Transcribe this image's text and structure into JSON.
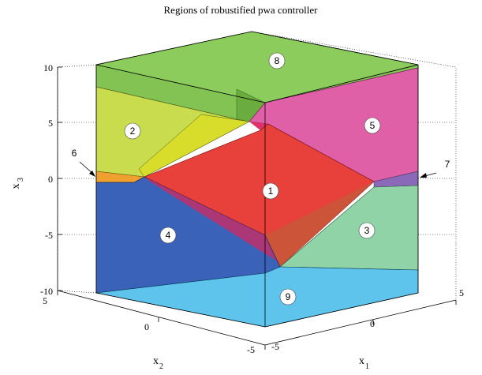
{
  "chart_data": {
    "type": "3d-polyhedral-partition",
    "title": "Regions of robustified pwa controller",
    "axes": {
      "x1": {
        "label": "x",
        "sub": "1",
        "ticks": [
          "-5",
          "0",
          "5"
        ],
        "range": [
          -5,
          5
        ]
      },
      "x2": {
        "label": "x",
        "sub": "2",
        "ticks": [
          "5",
          "0",
          "-5"
        ],
        "range": [
          -5,
          5
        ]
      },
      "x3": {
        "label": "x",
        "sub": "3",
        "ticks": [
          "10",
          "5",
          "0",
          "-5",
          "-10"
        ],
        "range": [
          -10,
          10
        ]
      }
    },
    "grid": true,
    "regions": [
      {
        "id": "1",
        "label": "1",
        "color": "#e8403a"
      },
      {
        "id": "2",
        "label": "2",
        "color": "#c9dc4e"
      },
      {
        "id": "3",
        "label": "3",
        "color": "#8fd3a6"
      },
      {
        "id": "4",
        "label": "4",
        "color": "#3a62b8"
      },
      {
        "id": "5",
        "label": "5",
        "color": "#e060a8"
      },
      {
        "id": "6",
        "label": "6",
        "color": "#f0a030"
      },
      {
        "id": "7",
        "label": "7",
        "color": "#8a6ab8"
      },
      {
        "id": "8",
        "label": "8",
        "color": "#7cc04a"
      },
      {
        "id": "9",
        "label": "9",
        "color": "#5ec4ec"
      }
    ],
    "annotations": [
      {
        "label": "6",
        "points_to": "6"
      },
      {
        "label": "7",
        "points_to": "7"
      }
    ]
  }
}
